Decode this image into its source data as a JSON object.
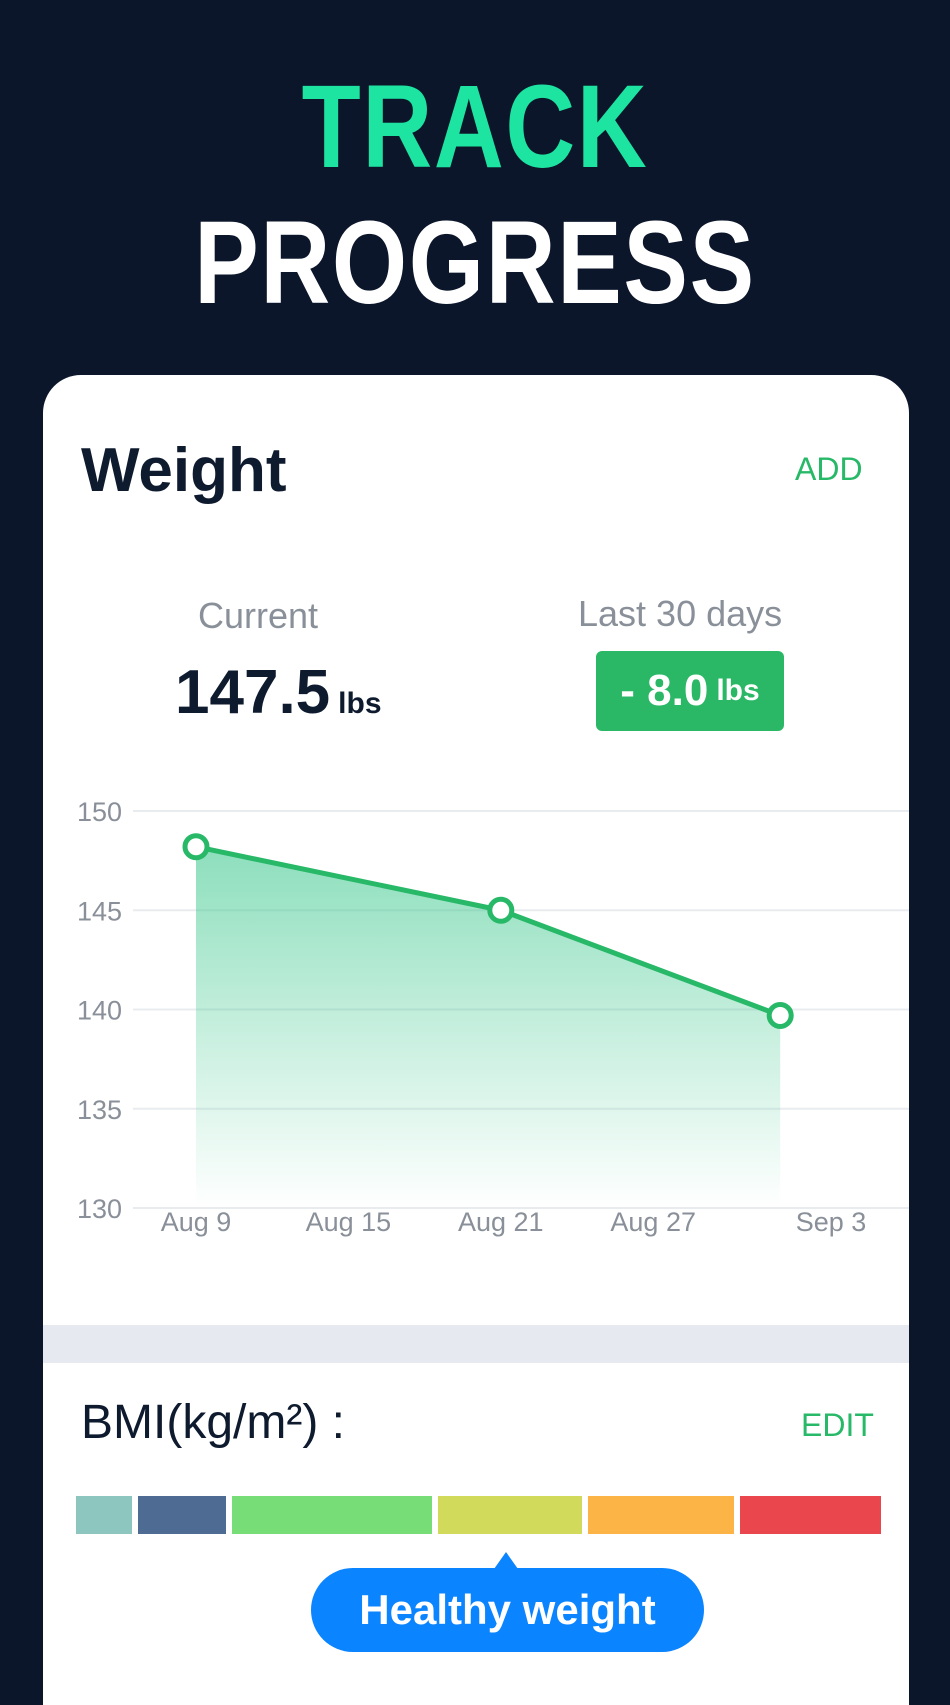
{
  "headline": {
    "line1": "TRACK",
    "line2": "PROGRESS"
  },
  "colors": {
    "accent_headline": "#1de5a1",
    "accent_green": "#27b868",
    "badge_green": "#2bb866",
    "bubble_blue": "#0a84ff",
    "background": "#0b162b"
  },
  "weight_card": {
    "title": "Weight",
    "add_label": "ADD",
    "current_label": "Current",
    "current_value": "147.5",
    "current_unit": "lbs",
    "period_label": "Last 30 days",
    "change_value": "- 8.0",
    "change_unit": "lbs"
  },
  "chart_data": {
    "type": "area",
    "title": "",
    "xlabel": "",
    "ylabel": "",
    "x_ticks": [
      "Aug 9",
      "Aug 15",
      "Aug 21",
      "Aug 27",
      "Sep 3"
    ],
    "y_ticks": [
      150,
      145,
      140,
      135,
      130
    ],
    "ylim": [
      130,
      150
    ],
    "xlim": [
      "Aug 9",
      "Sep 3"
    ],
    "grid": true,
    "legend": "none",
    "series": [
      {
        "points": [
          {
            "x": "Aug 9",
            "y": 148.2
          },
          {
            "x": "Aug 21",
            "y": 145
          },
          {
            "x": "Sep 1",
            "y": 139.7
          }
        ]
      }
    ],
    "line_color": "#27b868"
  },
  "bmi": {
    "title": "BMI(kg/m²) :",
    "edit_label": "EDIT",
    "scale_colors": [
      "#8cc6bf",
      "#4e6b94",
      "#77dd77",
      "#d1da5a",
      "#fcb447",
      "#e9464e"
    ],
    "status_label": "Healthy weight"
  }
}
